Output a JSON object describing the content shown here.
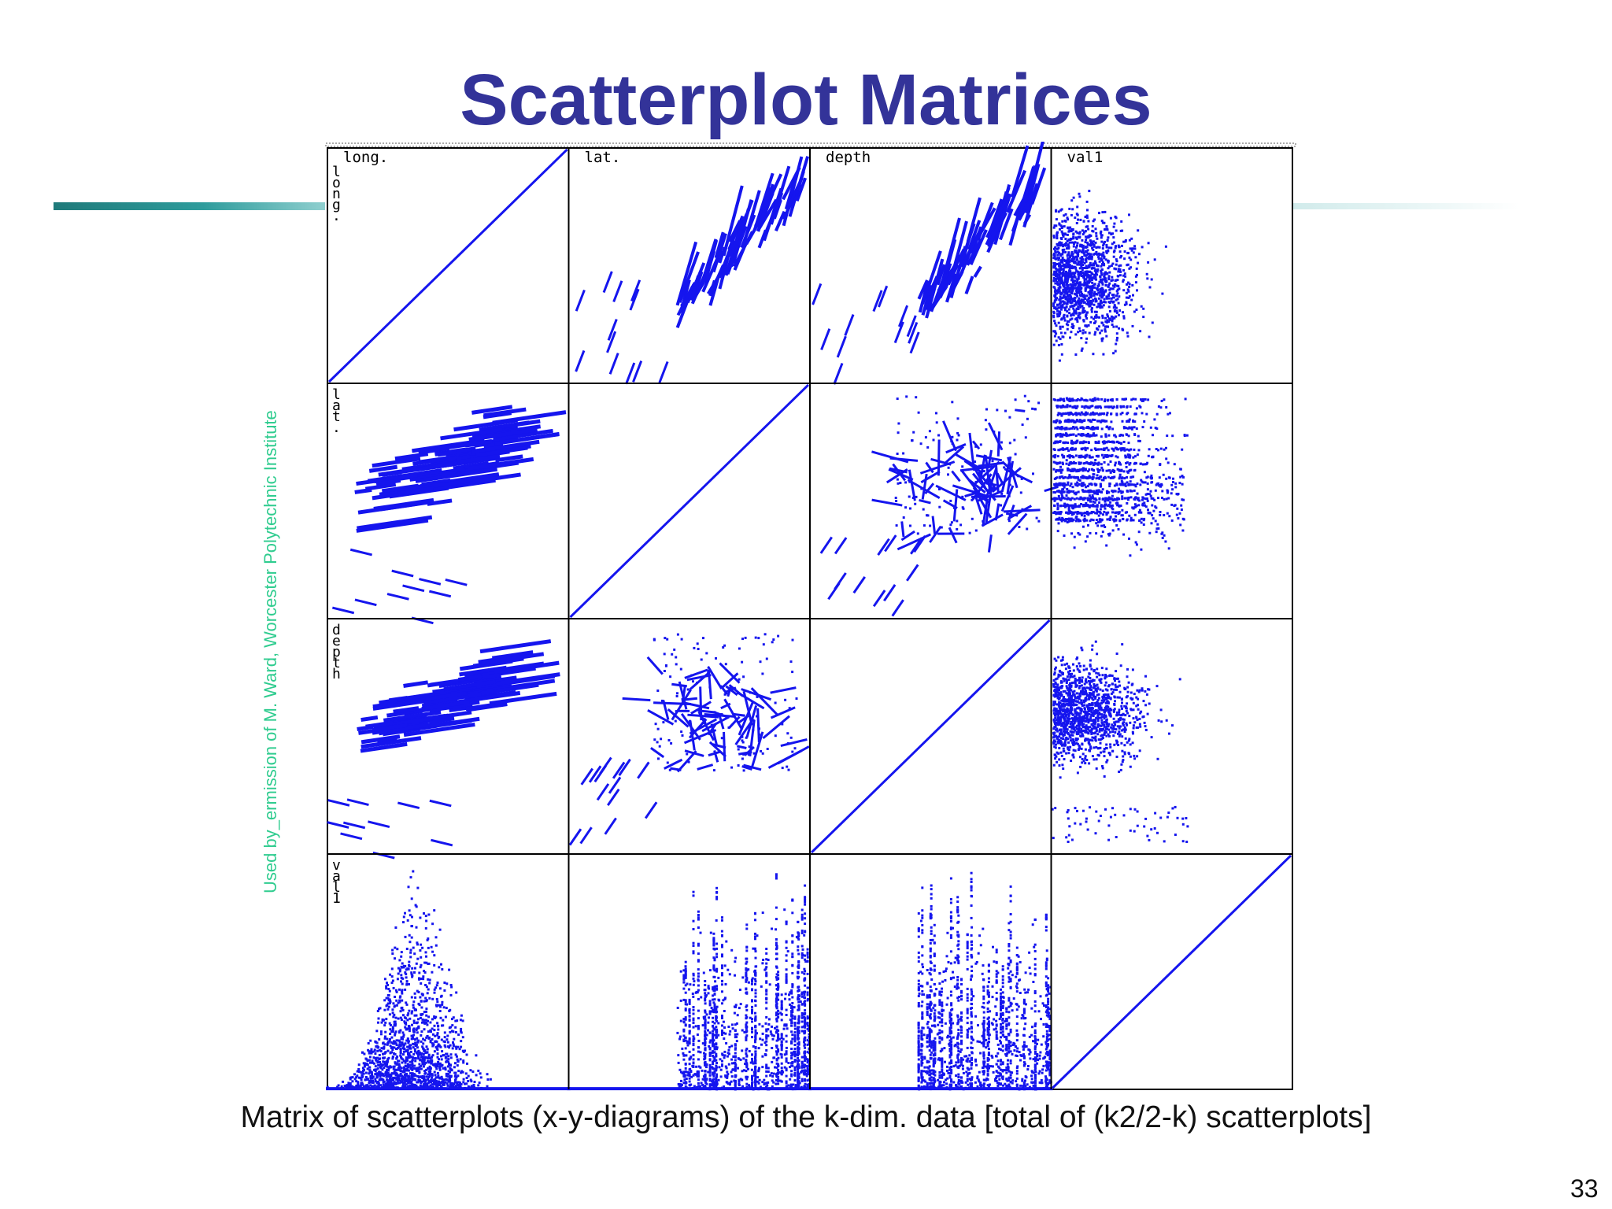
{
  "slide": {
    "title": "Scatterplot Matrices",
    "credit": "Used by_ermission of M. Ward, Worcester Polytechnic Institute",
    "caption": "Matrix of scatterplots (x-y-diagrams) of the k-dim. data [total of (k2/2-k) scatterplots]",
    "page_number": "33"
  },
  "colors": {
    "title": "#333399",
    "points": "#1515ee",
    "accent_bar": "#2e9c9c",
    "credit": "#2fcc8f"
  },
  "chart_data": {
    "type": "scatter",
    "variables": [
      "long.",
      "lat.",
      "depth",
      "val1"
    ],
    "matrix_layout": "variable-by-variable grid, diagonal cells show identity lines",
    "cell_pattern_descriptions": [
      [
        "identity",
        "banded positive cloud",
        "banded positive cloud",
        "left-skewed wide cloud"
      ],
      [
        "banded positive cloud",
        "identity",
        "central tangled cluster",
        "horizontal bands"
      ],
      [
        "banded positive cloud",
        "central tangled cluster",
        "identity",
        "dense left cloud"
      ],
      [
        "hump-shaped column",
        "vertical stripes right",
        "vertical stripes right",
        "identity"
      ]
    ],
    "grid": false
  }
}
